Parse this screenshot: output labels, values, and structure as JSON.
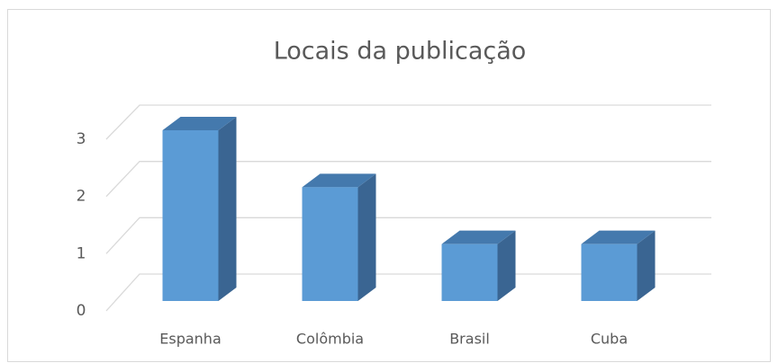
{
  "chart_data": {
    "type": "bar3d",
    "title": "Locais da publicação",
    "categories": [
      "Espanha",
      "Colômbia",
      "Brasil",
      "Cuba"
    ],
    "values": [
      3,
      2,
      1,
      1
    ],
    "color": "#5b9bd5",
    "ylim": [
      0,
      3
    ],
    "yticks": [
      0,
      1,
      2,
      3
    ],
    "grid": true
  }
}
